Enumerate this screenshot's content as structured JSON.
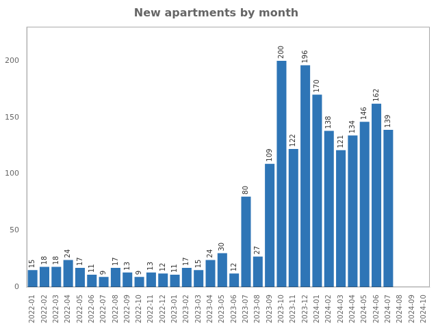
{
  "chart_data": {
    "type": "bar",
    "title": "New apartments by month",
    "categories": [
      "2022-01",
      "2022-02",
      "2022-03",
      "2022-04",
      "2022-05",
      "2022-06",
      "2022-07",
      "2022-08",
      "2022-09",
      "2022-10",
      "2022-11",
      "2022-12",
      "2023-01",
      "2023-02",
      "2023-03",
      "2023-04",
      "2023-05",
      "2023-06",
      "2023-07",
      "2023-08",
      "2023-09",
      "2023-10",
      "2023-11",
      "2023-12",
      "2024-01",
      "2024-02",
      "2024-03",
      "2024-04",
      "2024-05",
      "2024-06",
      "2024-07",
      "2024-08",
      "2024-09",
      "2024-10"
    ],
    "values": [
      15,
      18,
      18,
      24,
      17,
      11,
      9,
      17,
      13,
      9,
      13,
      12,
      11,
      17,
      15,
      24,
      30,
      12,
      80,
      27,
      109,
      200,
      122,
      196,
      170,
      138,
      121,
      134,
      146,
      162,
      139,
      0,
      0,
      0
    ],
    "color": "#2e75b6",
    "ylim": [
      0,
      230
    ],
    "yticks": [
      0,
      50,
      100,
      150,
      200
    ],
    "grid": false,
    "data_labels": true
  }
}
